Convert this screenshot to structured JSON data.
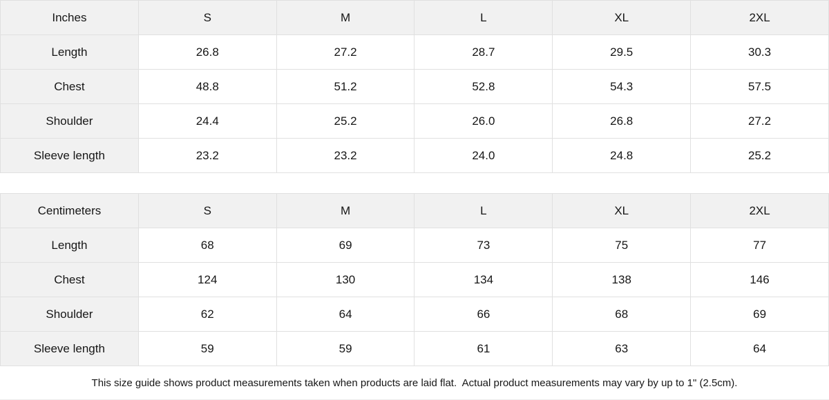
{
  "theme": {
    "page_bg": "#ffffff",
    "header_bg": "#f1f1f1",
    "border_color": "#e0e0e0",
    "text_color": "#161616"
  },
  "tables": [
    {
      "unit_label": "Inches",
      "sizes": [
        "S",
        "M",
        "L",
        "XL",
        "2XL"
      ],
      "rows": [
        {
          "label": "Length",
          "values": [
            "26.8",
            "27.2",
            "28.7",
            "29.5",
            "30.3"
          ]
        },
        {
          "label": "Chest",
          "values": [
            "48.8",
            "51.2",
            "52.8",
            "54.3",
            "57.5"
          ]
        },
        {
          "label": "Shoulder",
          "values": [
            "24.4",
            "25.2",
            "26.0",
            "26.8",
            "27.2"
          ]
        },
        {
          "label": "Sleeve length",
          "values": [
            "23.2",
            "23.2",
            "24.0",
            "24.8",
            "25.2"
          ]
        }
      ]
    },
    {
      "unit_label": "Centimeters",
      "sizes": [
        "S",
        "M",
        "L",
        "XL",
        "2XL"
      ],
      "rows": [
        {
          "label": "Length",
          "values": [
            "68",
            "69",
            "73",
            "75",
            "77"
          ]
        },
        {
          "label": "Chest",
          "values": [
            "124",
            "130",
            "134",
            "138",
            "146"
          ]
        },
        {
          "label": "Shoulder",
          "values": [
            "62",
            "64",
            "66",
            "68",
            "69"
          ]
        },
        {
          "label": "Sleeve length",
          "values": [
            "59",
            "59",
            "61",
            "63",
            "64"
          ]
        }
      ]
    }
  ],
  "footer": {
    "note": "This size guide shows product measurements taken when products are laid flat.  Actual product measurements may vary by up to 1\" (2.5cm)."
  }
}
